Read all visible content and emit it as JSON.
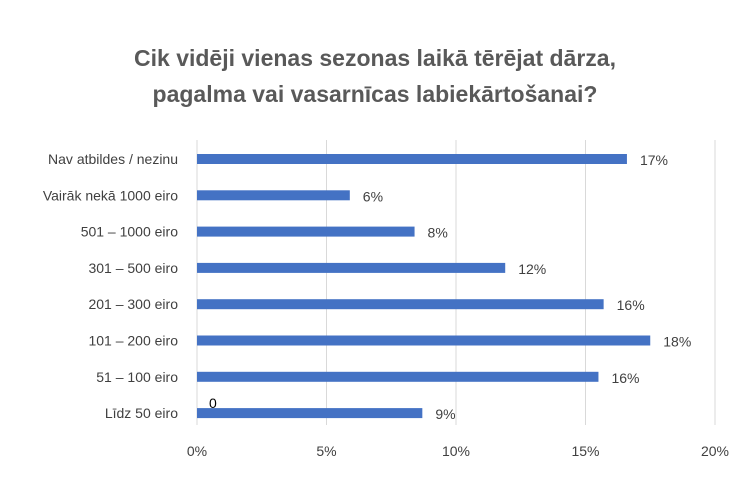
{
  "chart_data": {
    "type": "bar",
    "orientation": "horizontal",
    "title_lines": [
      "Cik vidēji vienas sezonas laikā tērējat dārza,",
      "pagalma vai vasarnīcas labiekārtošanai?"
    ],
    "categories": [
      "Nav atbildes / nezinu",
      "Vairāk nekā 1000 eiro",
      "501 – 1000 eiro",
      "301 – 500 eiro",
      "201 – 300 eiro",
      "101 – 200 eiro",
      "51 – 100 eiro",
      "Līdz 50 eiro"
    ],
    "values": [
      16.6,
      5.9,
      8.4,
      11.9,
      15.7,
      17.5,
      15.5,
      8.7
    ],
    "data_labels": [
      "17%",
      "6%",
      "8%",
      "12%",
      "16%",
      "18%",
      "16%",
      "9%"
    ],
    "x_ticks": [
      "0%",
      "5%",
      "10%",
      "15%",
      "20%"
    ],
    "xlim": [
      0,
      20
    ],
    "grid": true,
    "bar_color": "#4472C4",
    "annotation": {
      "text": "0",
      "category": "Līdz 50 eiro"
    }
  }
}
